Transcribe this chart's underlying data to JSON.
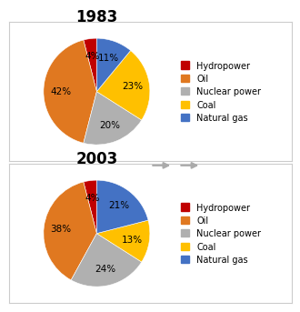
{
  "chart1": {
    "title": "1983",
    "values": [
      4,
      42,
      20,
      23,
      11
    ],
    "colors": [
      "#c00000",
      "#e07820",
      "#b0b0b0",
      "#ffc000",
      "#4472c4"
    ],
    "startangle": 90
  },
  "chart2": {
    "title": "2003",
    "values": [
      4,
      38,
      24,
      13,
      21
    ],
    "colors": [
      "#c00000",
      "#e07820",
      "#b0b0b0",
      "#ffc000",
      "#4472c4"
    ],
    "startangle": 90
  },
  "legend_labels": [
    "Hydropower",
    "Oil",
    "Nuclear power",
    "Coal",
    "Natural gas"
  ],
  "legend_colors": [
    "#c00000",
    "#e07820",
    "#b0b0b0",
    "#ffc000",
    "#4472c4"
  ],
  "title_fontsize": 12,
  "pct_fontsize": 7.5,
  "legend_fontsize": 7,
  "bg_color": "#ffffff",
  "panel_bg": "#ffffff",
  "border_color": "#cccccc",
  "separator_color": "#d0d0d0"
}
